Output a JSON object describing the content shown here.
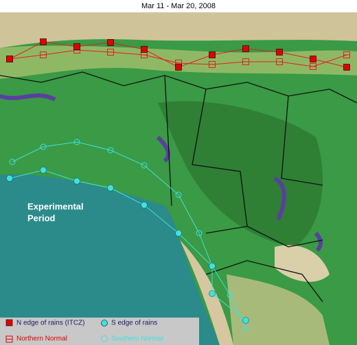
{
  "title": "Mar 11 - Mar 20, 2008",
  "annotation": {
    "lines": [
      "Experimental",
      "Period"
    ]
  },
  "legend": {
    "items": [
      {
        "label": "N edge of rains (ITCZ)"
      },
      {
        "label": "S edge of rains"
      },
      {
        "label": "Northern Normal"
      },
      {
        "label": "Southern Normal"
      }
    ]
  }
}
